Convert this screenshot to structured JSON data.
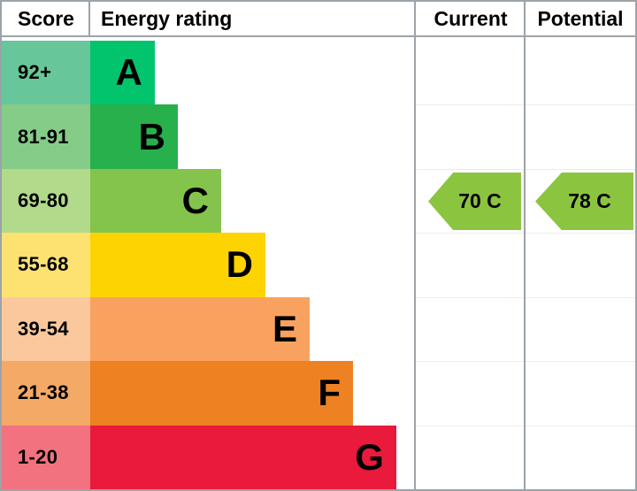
{
  "header": {
    "score": "Score",
    "energy_rating": "Energy rating",
    "current": "Current",
    "potential": "Potential"
  },
  "chart_data": {
    "type": "bar",
    "title": "Energy rating",
    "columns": [
      "Score",
      "Energy rating",
      "Current",
      "Potential"
    ],
    "bands": [
      {
        "letter": "A",
        "range": "92+",
        "min": 92,
        "max": 100,
        "score_bg": "#67c79a",
        "bar_bg": "#02c46d",
        "bar_width_pct": 19.8
      },
      {
        "letter": "B",
        "range": "81-91",
        "min": 81,
        "max": 91,
        "score_bg": "#85cc88",
        "bar_bg": "#28b04c",
        "bar_width_pct": 26.9
      },
      {
        "letter": "C",
        "range": "69-80",
        "min": 69,
        "max": 80,
        "score_bg": "#b1da8b",
        "bar_bg": "#85c44c",
        "bar_width_pct": 40.2
      },
      {
        "letter": "D",
        "range": "55-68",
        "min": 55,
        "max": 68,
        "score_bg": "#fde272",
        "bar_bg": "#fdd401",
        "bar_width_pct": 53.8
      },
      {
        "letter": "E",
        "range": "39-54",
        "min": 39,
        "max": 54,
        "score_bg": "#fbc89d",
        "bar_bg": "#f9a25f",
        "bar_width_pct": 67.4
      },
      {
        "letter": "F",
        "range": "21-38",
        "min": 21,
        "max": 38,
        "score_bg": "#f4a966",
        "bar_bg": "#ee8122",
        "bar_width_pct": 80.7
      },
      {
        "letter": "G",
        "range": "1-20",
        "min": 1,
        "max": 20,
        "score_bg": "#f2737f",
        "bar_bg": "#e91a3b",
        "bar_width_pct": 94.0
      }
    ],
    "current": {
      "label": "70 C",
      "value": 70,
      "band": "C",
      "color": "#8bc53f"
    },
    "potential": {
      "label": "78 C",
      "value": 78,
      "band": "C",
      "color": "#8bc53f"
    }
  },
  "colors": {
    "border": "#9da3a8",
    "row_separator": "#ececec",
    "background": "#ffffff",
    "text": "#000000"
  }
}
